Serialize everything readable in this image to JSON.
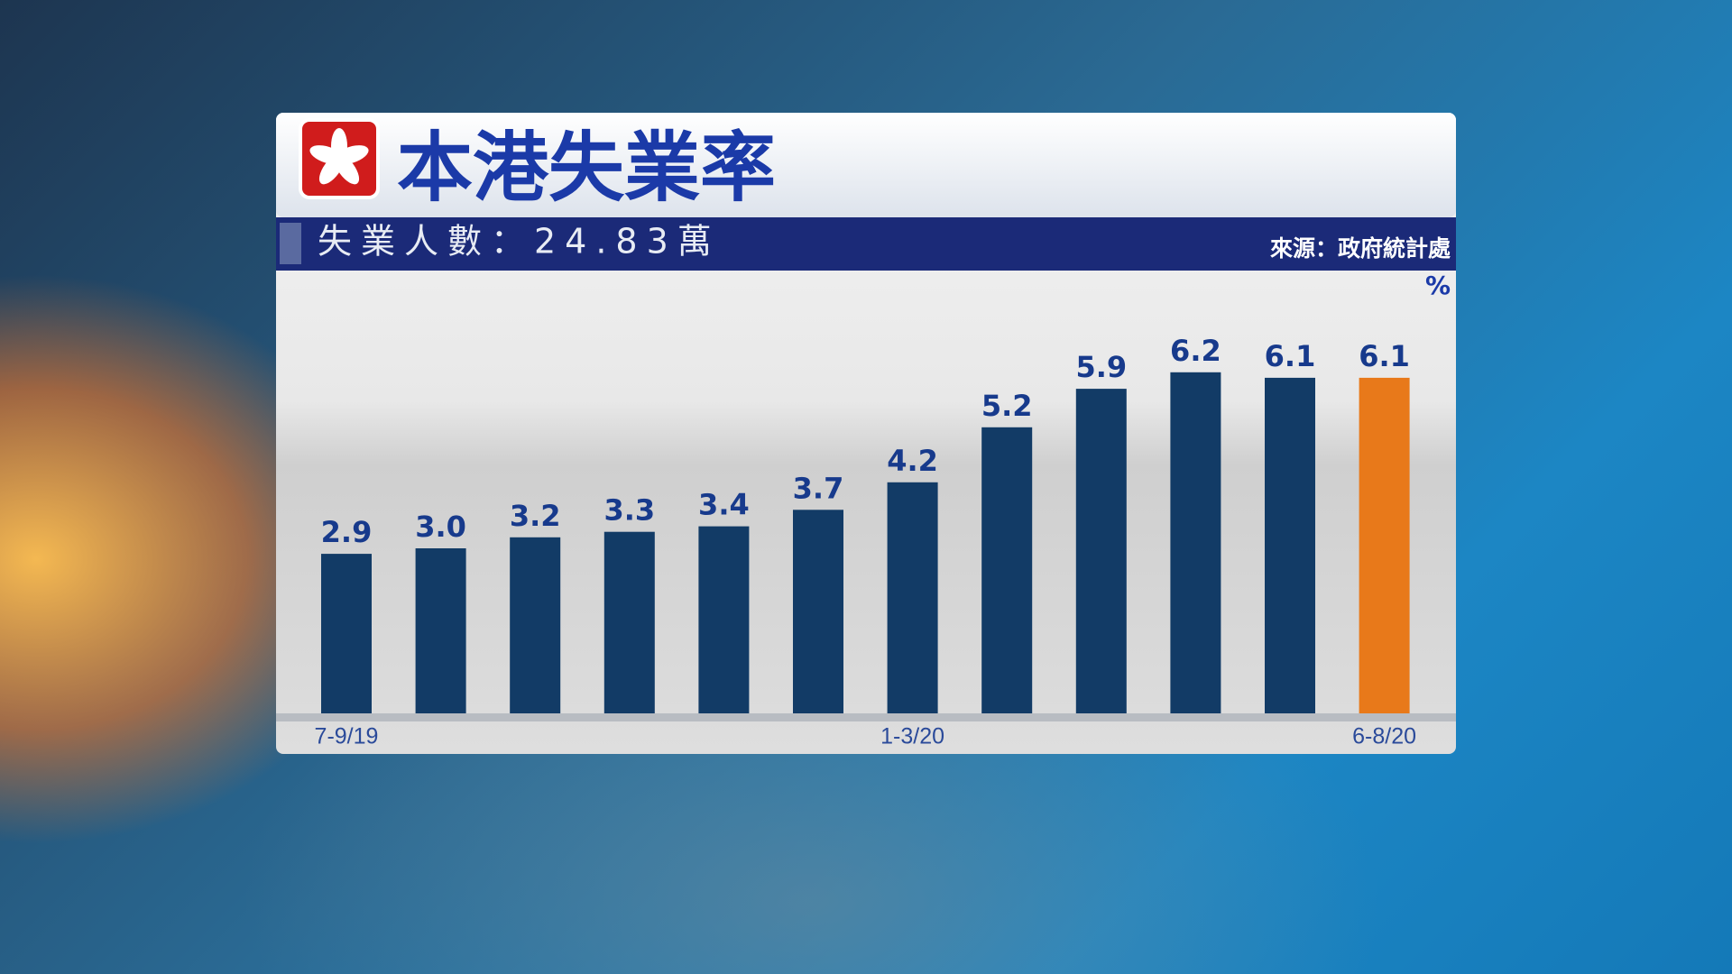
{
  "chart_data": {
    "type": "bar",
    "title": "本港失業率",
    "subtitle": "失業人數：24.83萬",
    "source": "來源：政府統計處",
    "unit": "%",
    "categories": [
      "7-9/19",
      null,
      null,
      null,
      null,
      null,
      "1-3/20",
      null,
      null,
      null,
      null,
      "6-8/20"
    ],
    "values": [
      2.9,
      3.0,
      3.2,
      3.3,
      3.4,
      3.7,
      4.2,
      5.2,
      5.9,
      6.2,
      6.1,
      6.1
    ],
    "value_labels": [
      "2.9",
      "3.0",
      "3.2",
      "3.3",
      "3.4",
      "3.7",
      "4.2",
      "5.2",
      "5.9",
      "6.2",
      "6.1",
      "6.1"
    ],
    "colors": [
      "#123b66",
      "#123b66",
      "#123b66",
      "#123b66",
      "#123b66",
      "#123b66",
      "#123b66",
      "#123b66",
      "#123b66",
      "#123b66",
      "#123b66",
      "#e8791a"
    ],
    "ylim": [
      0,
      8
    ]
  }
}
